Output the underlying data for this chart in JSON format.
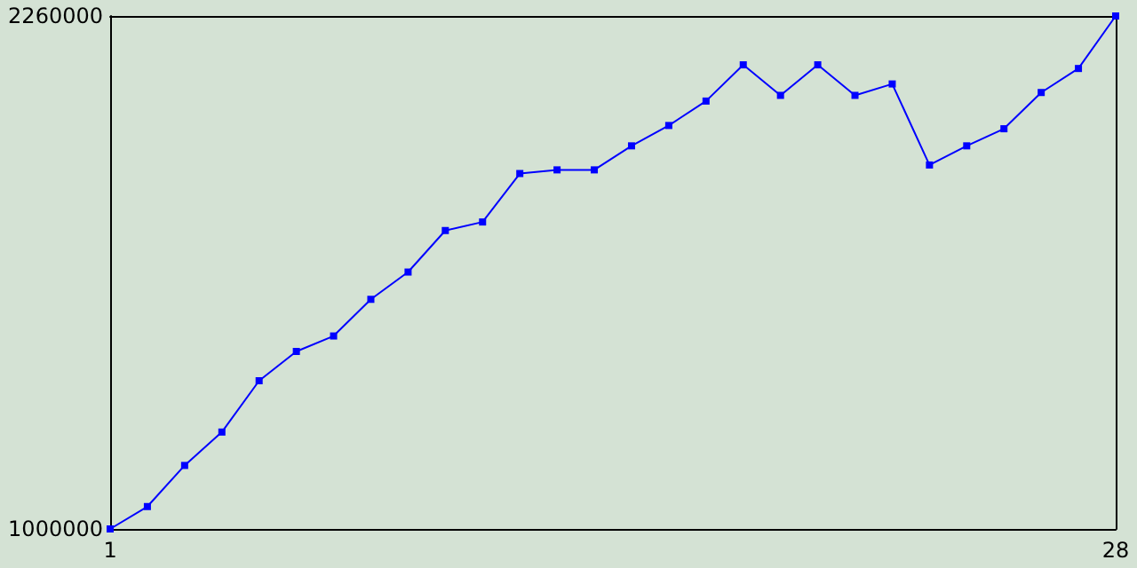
{
  "chart_data": {
    "type": "line",
    "x": [
      1,
      2,
      3,
      4,
      5,
      6,
      7,
      8,
      9,
      10,
      11,
      12,
      13,
      14,
      15,
      16,
      17,
      18,
      19,
      20,
      21,
      22,
      23,
      24,
      25,
      26,
      27,
      28
    ],
    "series": [
      {
        "color": "#0000ff",
        "values": [
          1000000,
          1055000,
          1156000,
          1238000,
          1364000,
          1436000,
          1474000,
          1564000,
          1631000,
          1733000,
          1754000,
          1873000,
          1882000,
          1882000,
          1941000,
          1991000,
          2051000,
          2140000,
          2065000,
          2140000,
          2065000,
          2093000,
          1894000,
          1941000,
          1983000,
          2072000,
          2131000,
          2260000
        ]
      }
    ],
    "xlim": [
      1,
      28
    ],
    "xticks": [
      1,
      28
    ],
    "ylim": [
      1000000,
      2260000
    ],
    "yticks": [
      1000000,
      2260000
    ],
    "marker": "square",
    "line_style": "solid"
  }
}
